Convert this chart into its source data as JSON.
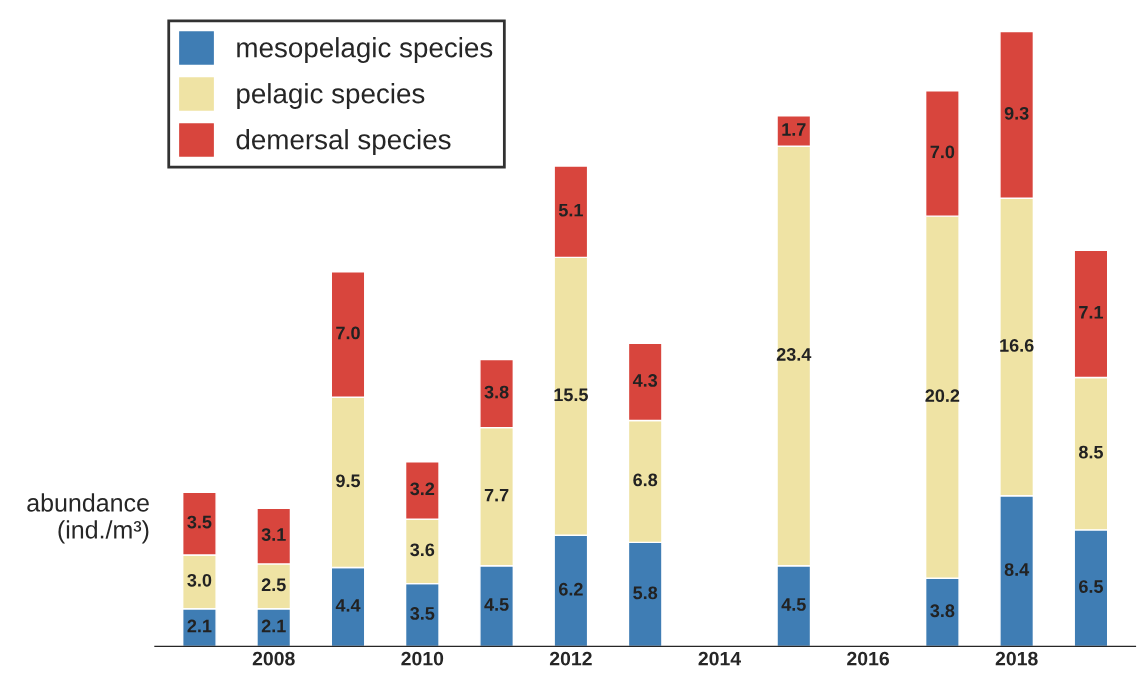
{
  "chart_data": {
    "type": "bar",
    "stacked": true,
    "legend": "top left",
    "ylabel": "abundance\n(ind./m³)",
    "categories": [
      null,
      "2008",
      null,
      "2010",
      null,
      "2012",
      null,
      "2014",
      null,
      "2016",
      null,
      "2018",
      null
    ],
    "series": [
      {
        "name": "mesopelagic species",
        "color": "#3f7db4",
        "values": [
          2.1,
          2.1,
          4.4,
          3.5,
          4.5,
          6.2,
          5.8,
          null,
          4.5,
          null,
          3.8,
          8.4,
          6.5
        ],
        "value_labels": [
          "2.1",
          "2.1",
          "4.4",
          "3.5",
          "4.5",
          "6.2",
          "5.8",
          null,
          "4.5",
          null,
          "3.8",
          "8.4",
          "6.5"
        ]
      },
      {
        "name": "pelagic species",
        "color": "#efe3a4",
        "values": [
          3.0,
          2.5,
          9.5,
          3.6,
          7.7,
          15.5,
          6.8,
          null,
          23.4,
          null,
          20.2,
          16.6,
          8.5
        ],
        "value_labels": [
          "3.0",
          "2.5",
          "9.5",
          "3.6",
          "7.7",
          "15.5",
          "6.8",
          null,
          "23.4",
          null,
          "20.2",
          "16.6",
          "8.5"
        ]
      },
      {
        "name": "demersal species",
        "color": "#d8453d",
        "values": [
          3.5,
          3.1,
          7.0,
          3.2,
          3.8,
          5.1,
          4.3,
          null,
          1.7,
          null,
          7.0,
          9.3,
          7.1
        ],
        "value_labels": [
          "3.5",
          "3.1",
          "7.0",
          "3.2",
          "3.8",
          "5.1",
          "4.3",
          null,
          "1.7",
          null,
          "7.0",
          "9.3",
          "7.1"
        ]
      }
    ]
  }
}
